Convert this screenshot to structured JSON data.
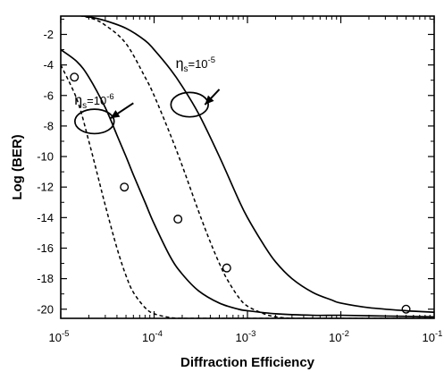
{
  "chart_data": {
    "type": "line",
    "xlabel": "Diffraction Efficiency",
    "ylabel": "Log (BER)",
    "x_scale": "log",
    "xlim": [
      1e-05,
      0.1
    ],
    "ylim": [
      -20.6,
      -0.8
    ],
    "x_ticks": [
      {
        "value": 1e-05,
        "base": "10",
        "exp": "-5"
      },
      {
        "value": 0.0001,
        "base": "10",
        "exp": "-4"
      },
      {
        "value": 0.001,
        "base": "10",
        "exp": "-3"
      },
      {
        "value": 0.01,
        "base": "10",
        "exp": "-2"
      },
      {
        "value": 0.1,
        "base": "10",
        "exp": "-1"
      }
    ],
    "y_ticks": [
      -2,
      -4,
      -6,
      -8,
      -10,
      -12,
      -14,
      -16,
      -18,
      -20
    ],
    "grid": false,
    "series": [
      {
        "style": "solid",
        "group": "eta_s_1e-6",
        "x": [
          1e-05,
          1.5e-05,
          2e-05,
          3e-05,
          4e-05,
          5e-05,
          6e-05,
          8e-05,
          0.0001,
          0.00015,
          0.0002,
          0.0003,
          0.0005,
          0.0008,
          0.001,
          0.002,
          0.005,
          0.01,
          0.03,
          0.1
        ],
        "y": [
          -3.0,
          -3.8,
          -4.8,
          -6.8,
          -8.6,
          -10.0,
          -11.2,
          -13.0,
          -14.4,
          -16.6,
          -17.7,
          -18.8,
          -19.6,
          -20.0,
          -20.1,
          -20.3,
          -20.4,
          -20.4,
          -20.45,
          -20.5
        ]
      },
      {
        "style": "dashed",
        "group": "eta_s_1e-6",
        "x": [
          1e-05,
          1.5e-05,
          2e-05,
          2.5e-05,
          3e-05,
          4e-05,
          5e-05,
          6e-05,
          8e-05,
          0.0001,
          0.00015,
          0.0002,
          0.0003,
          0.0005,
          0.001,
          0.01,
          0.1
        ],
        "y": [
          -4.0,
          -6.3,
          -9.0,
          -11.3,
          -13.2,
          -16.0,
          -17.8,
          -18.9,
          -19.9,
          -20.3,
          -20.55,
          -20.6,
          -20.6,
          -20.6,
          -20.6,
          -20.6,
          -20.6
        ]
      },
      {
        "style": "solid",
        "group": "eta_s_1e-5",
        "x": [
          1e-05,
          2e-05,
          3e-05,
          5e-05,
          8e-05,
          0.0001,
          0.00015,
          0.0002,
          0.0003,
          0.0005,
          0.0008,
          0.001,
          0.0015,
          0.002,
          0.003,
          0.005,
          0.008,
          0.01,
          0.02,
          0.05,
          0.1
        ],
        "y": [
          -0.6,
          -0.85,
          -1.1,
          -1.6,
          -2.4,
          -3.0,
          -4.3,
          -5.4,
          -7.2,
          -10.0,
          -12.8,
          -14.0,
          -15.8,
          -16.9,
          -18.0,
          -18.9,
          -19.4,
          -19.6,
          -19.9,
          -20.1,
          -20.2
        ]
      },
      {
        "style": "dashed",
        "group": "eta_s_1e-5",
        "x": [
          1e-05,
          2e-05,
          3e-05,
          5e-05,
          8e-05,
          0.0001,
          0.00015,
          0.0002,
          0.0003,
          0.0004,
          0.0005,
          0.0006,
          0.0008,
          0.001,
          0.0015,
          0.002,
          0.003,
          0.005,
          0.01,
          0.1
        ],
        "y": [
          -0.6,
          -0.9,
          -1.4,
          -2.6,
          -4.8,
          -6.0,
          -8.6,
          -10.6,
          -13.6,
          -15.6,
          -17.0,
          -18.0,
          -19.2,
          -19.8,
          -20.3,
          -20.5,
          -20.6,
          -20.6,
          -20.6,
          -20.6
        ]
      }
    ],
    "points": {
      "marker": "circle",
      "x": [
        1.4e-05,
        4.8e-05,
        0.00018,
        0.0006,
        0.05
      ],
      "y": [
        -4.8,
        -12.0,
        -14.1,
        -17.3,
        -20.0
      ]
    },
    "annotations": [
      {
        "symbol": "η",
        "subscript": "s",
        "text": "=10",
        "superscript": "-6",
        "x": 1.4e-05,
        "y": -6.6
      },
      {
        "symbol": "η",
        "subscript": "s",
        "text": "=10",
        "superscript": "-5",
        "x": 0.00017,
        "y": -4.2
      }
    ],
    "ellipses": [
      {
        "group": "eta_s_1e-6",
        "cx": 2.3e-05,
        "cy": -7.7,
        "rx_decades": 0.21,
        "ry": 0.8
      },
      {
        "group": "eta_s_1e-5",
        "cx": 0.00024,
        "cy": -6.6,
        "rx_decades": 0.2,
        "ry": 0.8
      }
    ],
    "arrows": [
      {
        "group": "eta_s_1e-6",
        "from": [
          6e-05,
          -6.5
        ],
        "to": [
          3.4e-05,
          -7.5
        ]
      },
      {
        "group": "eta_s_1e-5",
        "from": [
          0.0005,
          -5.6
        ],
        "to": [
          0.00035,
          -6.6
        ]
      }
    ]
  }
}
